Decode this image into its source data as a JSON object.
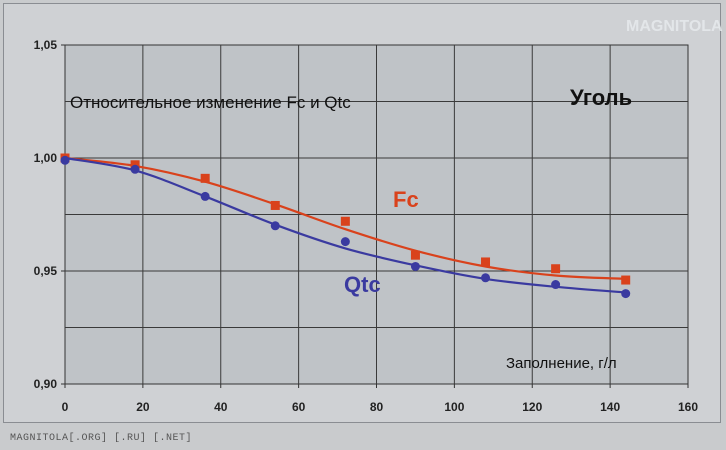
{
  "chart_data": {
    "type": "line",
    "title": "Относительное изменение Fc и Qtc",
    "subtitle": "Уголь",
    "xlabel": "Заполнение, г/л",
    "ylabel": "",
    "xlim": [
      0,
      160
    ],
    "ylim": [
      0.9,
      1.05
    ],
    "x_ticks": [
      "0",
      "20",
      "40",
      "60",
      "80",
      "100",
      "120",
      "140",
      "160"
    ],
    "y_ticks": [
      "1,05",
      "1,00",
      "0,95",
      "0,90"
    ],
    "grid": true,
    "series": [
      {
        "name": "Fc",
        "color": "#d9421c",
        "marker": "square",
        "x": [
          0,
          18,
          36,
          54,
          72,
          90,
          108,
          126,
          144
        ],
        "y": [
          1.0,
          0.997,
          0.991,
          0.979,
          0.972,
          0.957,
          0.954,
          0.951,
          0.946
        ],
        "curve_y": [
          1.0,
          0.9965,
          0.9895,
          0.9795,
          0.9685,
          0.959,
          0.952,
          0.948,
          0.9465
        ]
      },
      {
        "name": "Qtc",
        "color": "#3a3aa0",
        "marker": "circle",
        "x": [
          0,
          18,
          36,
          54,
          72,
          90,
          108,
          126,
          144
        ],
        "y": [
          0.999,
          0.995,
          0.983,
          0.97,
          0.963,
          0.952,
          0.947,
          0.944,
          0.94
        ],
        "curve_y": [
          1.0,
          0.9945,
          0.983,
          0.9705,
          0.96,
          0.9525,
          0.9465,
          0.943,
          0.9405
        ]
      }
    ]
  },
  "watermark": "MAGNITOLA[.ORG] [.RU] [.NET]",
  "logo": "MAGNITOLA"
}
